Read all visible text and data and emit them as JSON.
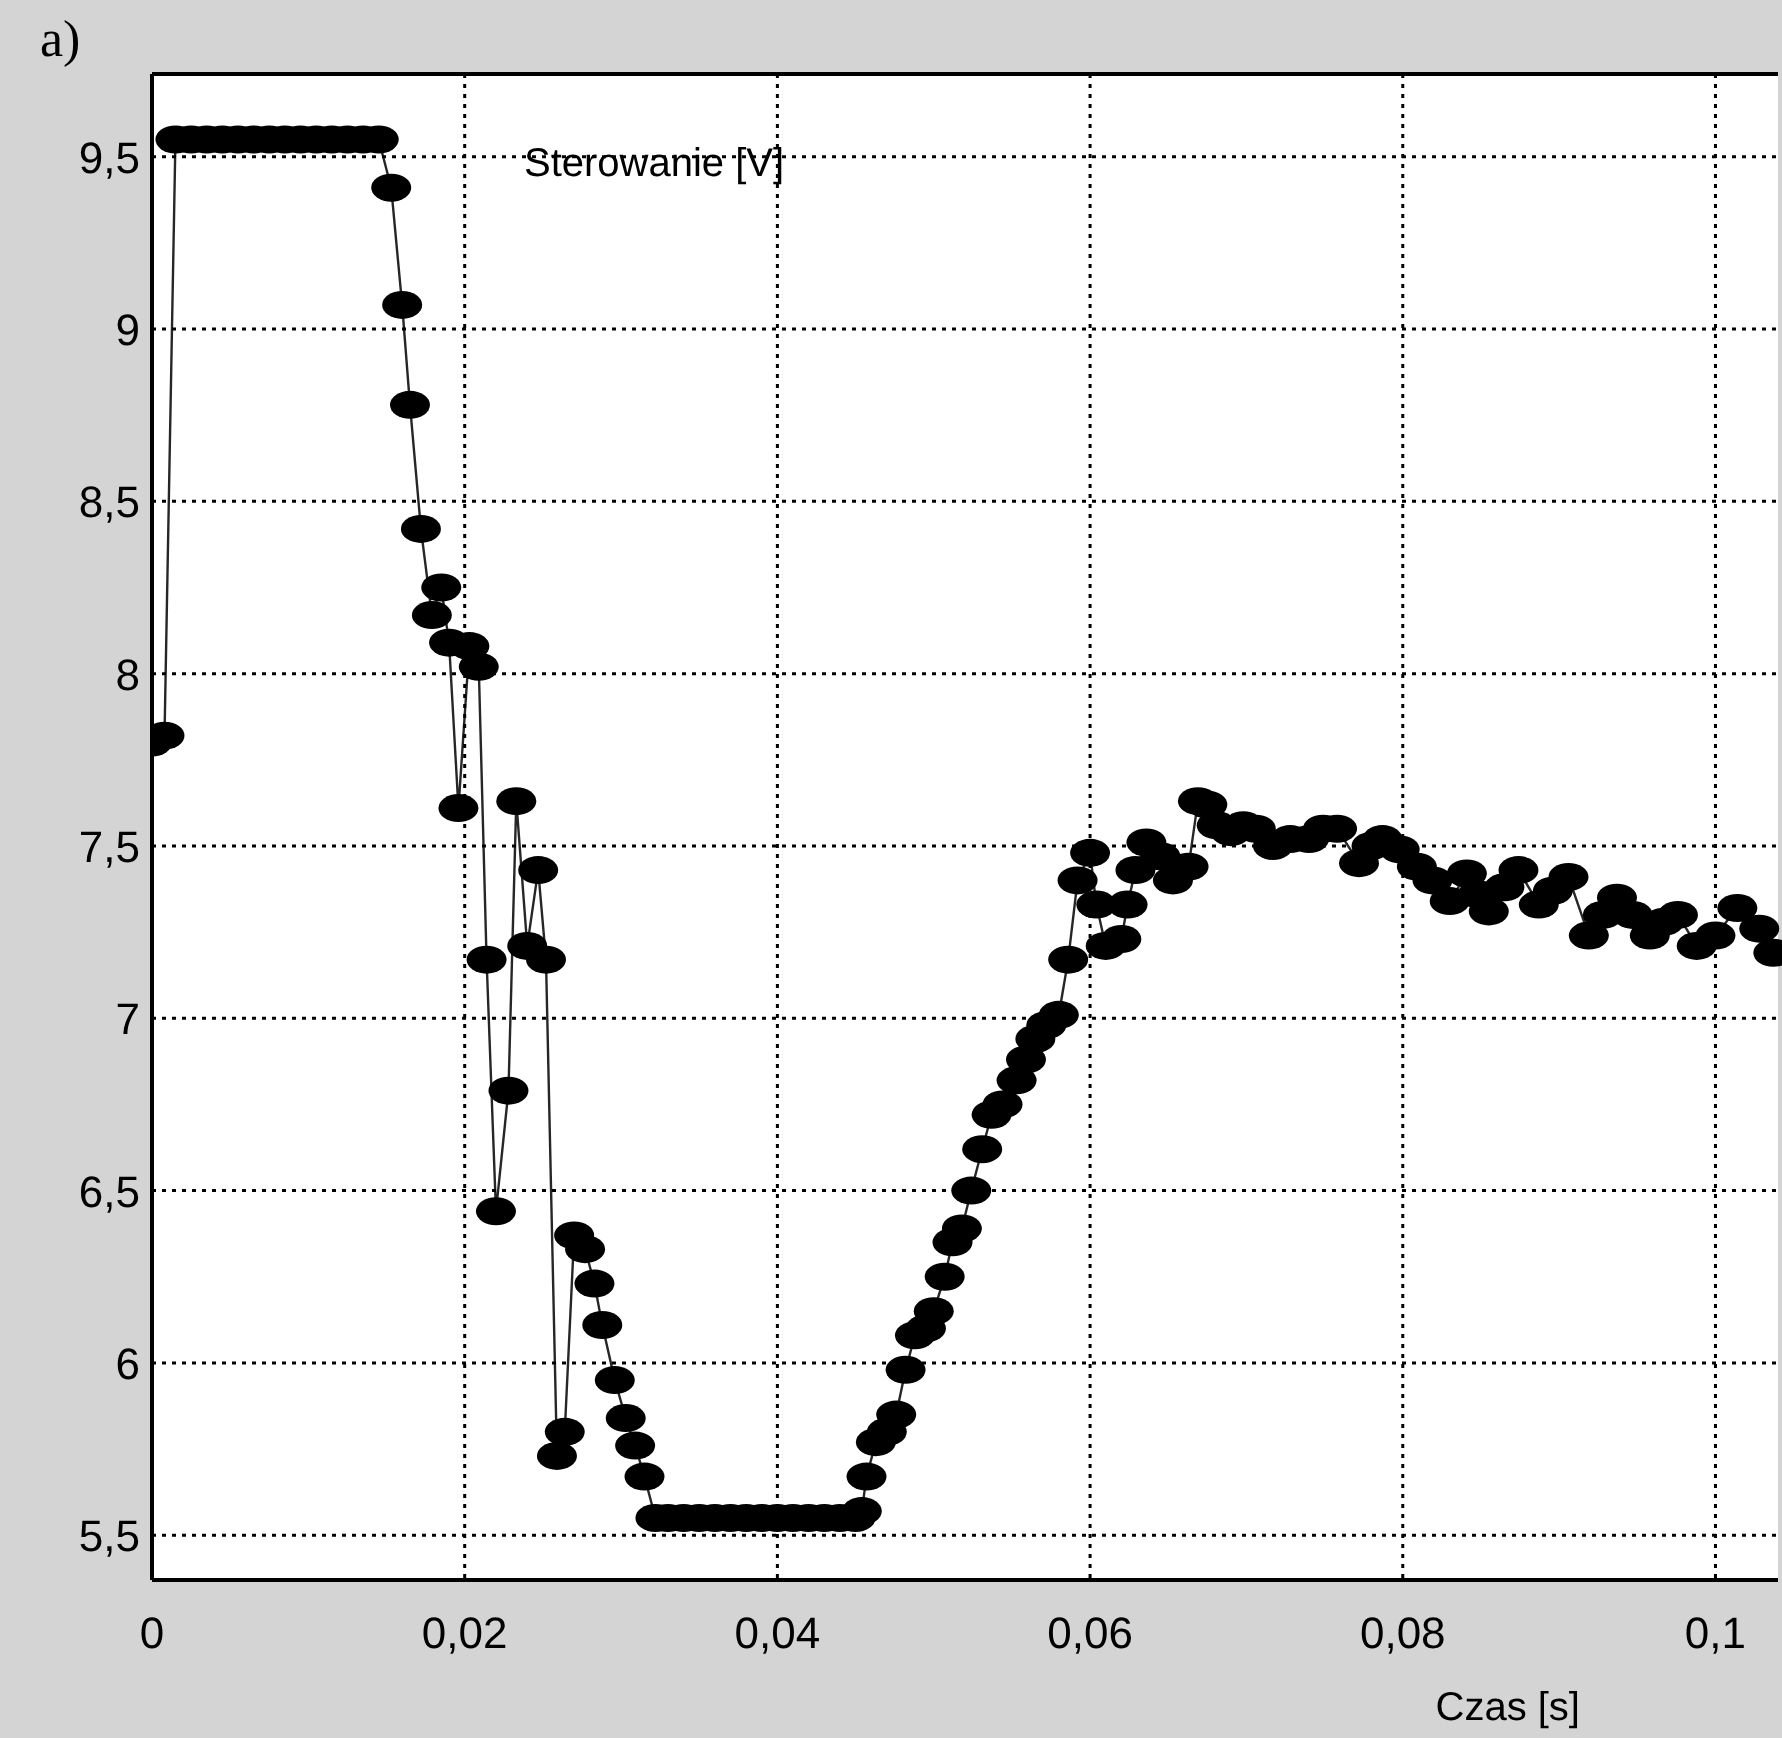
{
  "chart_data": {
    "type": "line",
    "ylabel": "Sterowanie [V]",
    "xlabel": "Czas [s]",
    "annotations": [
      "a)"
    ],
    "color": "#000000",
    "marker": "circle",
    "line_style": "solid",
    "grid": true,
    "xlim": [
      0,
      0.104
    ],
    "ylim": [
      5.37,
      9.74
    ],
    "xticks": [
      0,
      {
        "value": 0.02,
        "label": "0,02"
      },
      {
        "value": 0.04,
        "label": "0,04"
      },
      {
        "value": 0.06,
        "label": "0,06"
      },
      {
        "value": 0.08,
        "label": "0,08"
      },
      {
        "value": 0.1,
        "label": "0,1"
      }
    ],
    "yticks": [
      {
        "value": 5.5,
        "label": "5,5"
      },
      6,
      {
        "value": 6.5,
        "label": "6,5"
      },
      7,
      {
        "value": 7.5,
        "label": "7,5"
      },
      8,
      {
        "value": 8.5,
        "label": "8,5"
      },
      9,
      {
        "value": 9.5,
        "label": "9,5"
      }
    ],
    "x": [
      0,
      0.0008,
      0.0015,
      0.0025,
      0.0035,
      0.0045,
      0.0055,
      0.0065,
      0.0075,
      0.0085,
      0.0095,
      0.0105,
      0.0115,
      0.0125,
      0.0135,
      0.0145,
      0.0153,
      0.016,
      0.0165,
      0.0172,
      0.0179,
      0.0185,
      0.019,
      0.0196,
      0.0203,
      0.0209,
      0.0214,
      0.022,
      0.0228,
      0.0233,
      0.024,
      0.0247,
      0.0252,
      0.0259,
      0.0264,
      0.027,
      0.0277,
      0.0283,
      0.0288,
      0.0296,
      0.0303,
      0.0309,
      0.0315,
      0.0322,
      0.033,
      0.034,
      0.035,
      0.036,
      0.037,
      0.038,
      0.039,
      0.04,
      0.041,
      0.042,
      0.043,
      0.044,
      0.045,
      0.0454,
      0.0457,
      0.0463,
      0.047,
      0.0476,
      0.0482,
      0.0488,
      0.0495,
      0.05,
      0.0507,
      0.0512,
      0.0518,
      0.0524,
      0.0531,
      0.0537,
      0.0544,
      0.0553,
      0.0559,
      0.0565,
      0.0572,
      0.058,
      0.0586,
      0.0592,
      0.06,
      0.0604,
      0.061,
      0.062,
      0.0624,
      0.0629,
      0.0636,
      0.0645,
      0.0653,
      0.0663,
      0.0669,
      0.0675,
      0.0681,
      0.069,
      0.0698,
      0.0706,
      0.0717,
      0.0728,
      0.074,
      0.0749,
      0.0758,
      0.0772,
      0.078,
      0.0787,
      0.0798,
      0.0809,
      0.0819,
      0.083,
      0.0841,
      0.0848,
      0.0855,
      0.0865,
      0.0874,
      0.0887,
      0.0896,
      0.0906,
      0.0919,
      0.0928,
      0.0937,
      0.0947,
      0.0958,
      0.0967,
      0.0976,
      0.0988,
      0.1,
      0.1014,
      0.1028,
      0.1037
    ],
    "values": [
      7.8,
      7.82,
      9.55,
      9.55,
      9.55,
      9.55,
      9.55,
      9.55,
      9.55,
      9.55,
      9.55,
      9.55,
      9.55,
      9.55,
      9.55,
      9.55,
      9.41,
      9.07,
      8.78,
      8.42,
      8.17,
      8.25,
      8.09,
      7.61,
      8.08,
      8.02,
      7.17,
      6.44,
      6.79,
      7.63,
      7.21,
      7.43,
      7.17,
      5.73,
      5.8,
      6.37,
      6.33,
      6.23,
      6.11,
      5.95,
      5.84,
      5.76,
      5.67,
      5.55,
      5.55,
      5.55,
      5.55,
      5.55,
      5.55,
      5.55,
      5.55,
      5.55,
      5.55,
      5.55,
      5.55,
      5.55,
      5.55,
      5.57,
      5.67,
      5.77,
      5.8,
      5.85,
      5.98,
      6.08,
      6.1,
      6.15,
      6.25,
      6.35,
      6.39,
      6.5,
      6.62,
      6.72,
      6.75,
      6.82,
      6.88,
      6.94,
      6.98,
      7.01,
      7.17,
      7.4,
      7.48,
      7.33,
      7.21,
      7.23,
      7.33,
      7.43,
      7.51,
      7.47,
      7.4,
      7.44,
      7.63,
      7.62,
      7.56,
      7.54,
      7.56,
      7.55,
      7.5,
      7.52,
      7.52,
      7.55,
      7.55,
      7.45,
      7.5,
      7.52,
      7.49,
      7.44,
      7.4,
      7.34,
      7.42,
      7.36,
      7.31,
      7.38,
      7.43,
      7.33,
      7.37,
      7.41,
      7.24,
      7.3,
      7.35,
      7.3,
      7.24,
      7.28,
      7.3,
      7.21,
      7.24,
      7.32,
      7.26,
      7.19
    ]
  }
}
